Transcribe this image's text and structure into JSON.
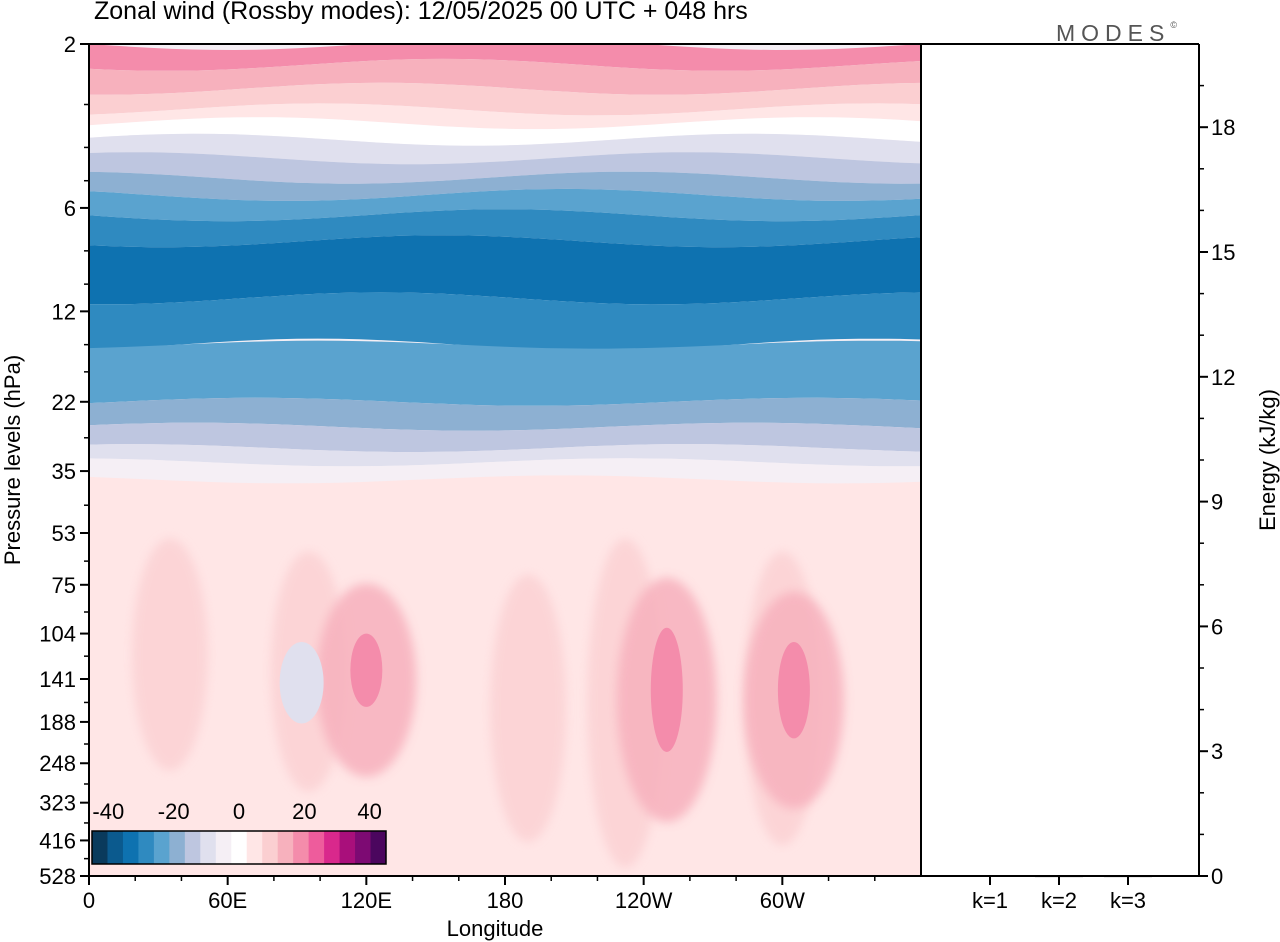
{
  "header": {
    "title": "Zonal wind (Rossby modes):  12/05/2025  00 UTC  + 048 hrs",
    "logo": "MODES",
    "logo_mark": "©"
  },
  "chart_data": [
    {
      "type": "heatmap",
      "xlabel": "Longitude",
      "ylabel": "Pressure levels (hPa)",
      "x_ticks": [
        "0",
        "60E",
        "120E",
        "180",
        "120W",
        "60W"
      ],
      "x_range_deg": [
        0,
        360
      ],
      "y_ticks": [
        "2",
        "6",
        "12",
        "22",
        "35",
        "53",
        "75",
        "104",
        "141",
        "188",
        "248",
        "323",
        "416",
        "528"
      ],
      "y_range": [
        2,
        528
      ],
      "y_inverted": true,
      "colorbar": {
        "labels": [
          "-40",
          "-20",
          "0",
          "20",
          "40"
        ],
        "levels": [
          -45,
          -40,
          -35,
          -30,
          -25,
          -20,
          -15,
          -10,
          -5,
          0,
          5,
          10,
          15,
          20,
          25,
          30,
          35,
          40,
          45
        ],
        "colors": [
          "#0a3a5c",
          "#0b5a8e",
          "#0e72b0",
          "#2f8ac0",
          "#5aa3cf",
          "#8db0d2",
          "#bec6e0",
          "#e0e0ee",
          "#f5eff5",
          "#ffffff",
          "#ffe6e6",
          "#fbcfd1",
          "#f7b1bd",
          "#f48cab",
          "#ee5c9c",
          "#d9288c",
          "#a90f7b",
          "#7d0a73",
          "#4b065e"
        ]
      },
      "bands": [
        {
          "level": 2,
          "value": 18,
          "color": "#f48cab"
        },
        {
          "level": 2.3,
          "value": 15,
          "color": "#f7b1bd"
        },
        {
          "level": 2.7,
          "value": 10,
          "color": "#fbcfd1"
        },
        {
          "level": 3.1,
          "value": 5,
          "color": "#ffe6e6"
        },
        {
          "level": 3.4,
          "value": 0,
          "color": "#ffffff"
        },
        {
          "level": 3.8,
          "value": -5,
          "color": "#e0e0ee"
        },
        {
          "level": 4.3,
          "value": -10,
          "color": "#bec6e0"
        },
        {
          "level": 4.9,
          "value": -15,
          "color": "#8db0d2"
        },
        {
          "level": 5.5,
          "value": -20,
          "color": "#5aa3cf"
        },
        {
          "level": 6.3,
          "value": -25,
          "color": "#2f8ac0"
        },
        {
          "level": 7.5,
          "value": -32,
          "color": "#0e72b0"
        },
        {
          "level": 11,
          "value": -28,
          "color": "#2f8ac0"
        },
        {
          "level": 15,
          "value": -22,
          "color": "#5aa3cf"
        },
        {
          "level": 22,
          "value": -15,
          "color": "#8db0d2"
        },
        {
          "level": 26,
          "value": -10,
          "color": "#bec6e0"
        },
        {
          "level": 30,
          "value": -5,
          "color": "#e0e0ee"
        },
        {
          "level": 33,
          "value": 0,
          "color": "#f5eff5"
        },
        {
          "level": 37,
          "value": 3,
          "color": "#ffe6e6"
        }
      ],
      "features": [
        {
          "name": "jet-core-1",
          "lon": 120,
          "p_top": 104,
          "p_bottom": 170,
          "value": 20,
          "color": "#f48cab"
        },
        {
          "name": "jet-core-2",
          "lon": 250,
          "p_top": 100,
          "p_bottom": 230,
          "value": 20,
          "color": "#f48cab"
        },
        {
          "name": "jet-core-3",
          "lon": 305,
          "p_top": 110,
          "p_bottom": 210,
          "value": 20,
          "color": "#f48cab"
        },
        {
          "name": "easterly-pocket",
          "lon": 92,
          "p_top": 110,
          "p_bottom": 190,
          "value": -5,
          "color": "#e0e0ee"
        }
      ]
    },
    {
      "type": "bar",
      "ylabel": "Energy (kJ/kg)",
      "categories": [
        "k=1",
        "k=2",
        "k=3"
      ],
      "values": [
        0.02,
        0.01,
        0.01
      ],
      "y_ticks": [
        "0",
        "3",
        "6",
        "9",
        "12",
        "15",
        "18"
      ],
      "ylim": [
        0,
        20
      ]
    }
  ]
}
